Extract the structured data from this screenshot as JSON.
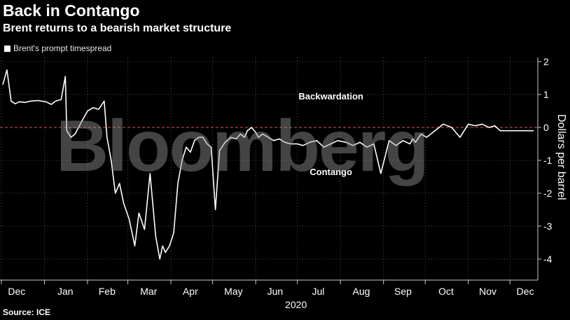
{
  "header": {
    "title": "Back in Contango",
    "subtitle": "Brent returns to a bearish market structure"
  },
  "legend": {
    "label": "Brent's prompt timespread",
    "swatch_color": "#ffffff"
  },
  "footer": {
    "source": "Source: ICE"
  },
  "watermark": {
    "text": "Bloomberg"
  },
  "chart_data": {
    "type": "line",
    "title": "Back in Contango",
    "subtitle": "Brent returns to a bearish market structure",
    "xlabel": "2020",
    "ylabel": "Dollars per barrel",
    "ylim": [
      -4.5,
      2.3
    ],
    "yticks": [
      2,
      1,
      0,
      -1,
      -2,
      -3,
      -4
    ],
    "month_labels": [
      "Dec",
      "Jan",
      "Feb",
      "Mar",
      "Apr",
      "May",
      "Jun",
      "Jul",
      "Aug",
      "Sep",
      "Oct",
      "Nov",
      "Dec"
    ],
    "reference_line": {
      "y": 0,
      "style": "dashed",
      "color": "#e0303a"
    },
    "annotations": [
      {
        "text": "Backwardation",
        "x": "2020-07-05",
        "y": 0.85
      },
      {
        "text": "Contango",
        "x": "2020-07-05",
        "y": -1.45
      }
    ],
    "grid": true,
    "legend_position": "top-left",
    "series": [
      {
        "name": "Brent's prompt timespread",
        "color": "#ffffff",
        "x": [
          "2019-12-02",
          "2019-12-05",
          "2019-12-08",
          "2019-12-11",
          "2019-12-14",
          "2019-12-18",
          "2019-12-22",
          "2019-12-27",
          "2020-01-02",
          "2020-01-06",
          "2020-01-09",
          "2020-01-13",
          "2020-01-16",
          "2020-01-17",
          "2020-01-20",
          "2020-01-23",
          "2020-01-28",
          "2020-02-01",
          "2020-02-05",
          "2020-02-09",
          "2020-02-13",
          "2020-02-15",
          "2020-02-18",
          "2020-02-21",
          "2020-02-24",
          "2020-02-27",
          "2020-03-02",
          "2020-03-06",
          "2020-03-09",
          "2020-03-13",
          "2020-03-17",
          "2020-03-21",
          "2020-03-24",
          "2020-03-26",
          "2020-03-28",
          "2020-03-31",
          "2020-04-03",
          "2020-04-06",
          "2020-04-09",
          "2020-04-12",
          "2020-04-15",
          "2020-04-18",
          "2020-04-21",
          "2020-04-24",
          "2020-04-27",
          "2020-04-30",
          "2020-05-03",
          "2020-05-06",
          "2020-05-10",
          "2020-05-14",
          "2020-05-18",
          "2020-05-21",
          "2020-05-24",
          "2020-05-26",
          "2020-05-29",
          "2020-06-01",
          "2020-06-03",
          "2020-06-06",
          "2020-06-10",
          "2020-06-14",
          "2020-06-18",
          "2020-06-22",
          "2020-06-26",
          "2020-07-01",
          "2020-07-05",
          "2020-07-10",
          "2020-07-15",
          "2020-07-20",
          "2020-07-25",
          "2020-07-30",
          "2020-08-05",
          "2020-08-10",
          "2020-08-15",
          "2020-08-20",
          "2020-08-25",
          "2020-08-30",
          "2020-09-05",
          "2020-09-10",
          "2020-09-15",
          "2020-09-20",
          "2020-09-22",
          "2020-09-24",
          "2020-09-28",
          "2020-10-02",
          "2020-10-08",
          "2020-10-14",
          "2020-10-20",
          "2020-10-26",
          "2020-11-01",
          "2020-11-06",
          "2020-11-11",
          "2020-11-16",
          "2020-11-20",
          "2020-11-24",
          "2020-11-28",
          "2020-12-02",
          "2020-12-07",
          "2020-12-11",
          "2020-12-15",
          "2020-12-18"
        ],
        "y": [
          1.3,
          1.75,
          0.8,
          0.72,
          0.78,
          0.76,
          0.8,
          0.82,
          0.78,
          0.7,
          0.8,
          0.85,
          1.55,
          -0.1,
          -0.3,
          -0.2,
          0.2,
          0.5,
          0.6,
          0.55,
          0.8,
          -0.3,
          -1.0,
          -2.0,
          -1.7,
          -2.3,
          -2.8,
          -3.6,
          -2.6,
          -3.1,
          -1.4,
          -3.3,
          -4.0,
          -3.6,
          -3.8,
          -3.6,
          -3.2,
          -1.7,
          -1.0,
          -0.6,
          -0.75,
          -0.4,
          -0.3,
          -0.3,
          -0.5,
          -0.6,
          -2.5,
          -0.7,
          -0.45,
          -0.3,
          -0.35,
          -0.2,
          -0.3,
          -0.1,
          0.0,
          -0.15,
          -0.3,
          -0.2,
          -0.3,
          -0.4,
          -0.35,
          -0.45,
          -0.5,
          -0.5,
          -0.55,
          -0.45,
          -0.4,
          -0.6,
          -0.5,
          -0.4,
          -0.45,
          -0.55,
          -0.45,
          -0.6,
          -0.5,
          -1.4,
          -0.4,
          -0.55,
          -0.4,
          -0.5,
          -0.35,
          -0.45,
          -0.2,
          -0.3,
          -0.1,
          0.1,
          0.0,
          -0.3,
          0.1,
          0.05,
          0.1,
          0.0,
          0.05,
          -0.1,
          -0.1,
          -0.1,
          -0.1,
          -0.1,
          -0.1,
          -0.1
        ]
      }
    ]
  }
}
